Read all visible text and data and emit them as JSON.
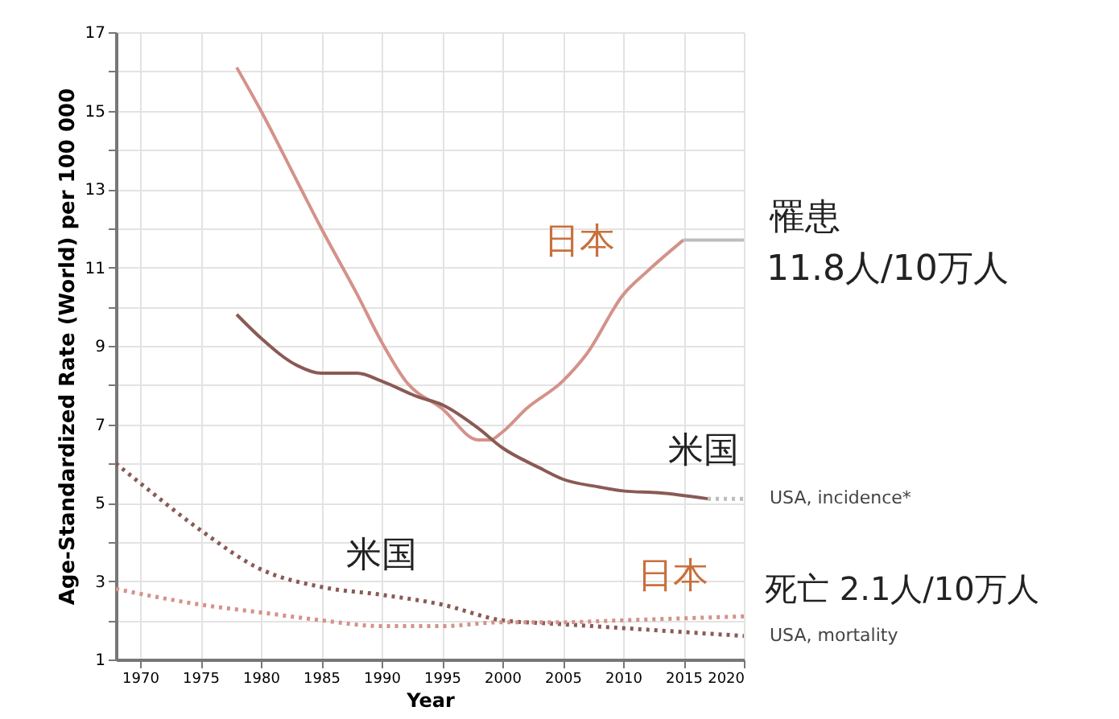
{
  "chart_data": {
    "type": "line",
    "xlabel": "Year",
    "ylabel": "Age-Standardized Rate (World) per 100 000",
    "xlim": [
      1968,
      2020
    ],
    "xticks": [
      1970,
      1975,
      1980,
      1985,
      1990,
      1995,
      2000,
      2005,
      2010,
      2015,
      2020
    ],
    "ylim": [
      1,
      17
    ],
    "yticks": [
      1,
      {
        "value": 2,
        "label": null
      },
      3,
      {
        "value": 4,
        "label": null
      },
      5,
      {
        "value": 6,
        "label": null
      },
      7,
      {
        "value": 8,
        "label": null
      },
      9,
      {
        "value": 10,
        "label": null
      },
      11,
      {
        "value": 12,
        "label": null
      },
      13,
      {
        "value": 14,
        "label": null
      },
      15,
      {
        "value": 16,
        "label": null
      },
      17
    ],
    "grid": true,
    "legend": false,
    "marker": "none",
    "series": [
      {
        "color": "#d4928a",
        "line_style": "solid",
        "x": [
          1978,
          1980,
          1983,
          1985,
          1988,
          1990,
          1992,
          1995,
          1998,
          1999,
          2000,
          2002,
          2005,
          2007,
          2010,
          2012,
          2015
        ],
        "values": [
          16.1,
          15.0,
          13.2,
          12.0,
          10.3,
          9.1,
          8.1,
          7.4,
          6.6,
          6.6,
          6.8,
          7.4,
          8.1,
          8.8,
          10.3,
          10.9,
          11.7
        ]
      },
      {
        "color": "#bdbdbd",
        "line_style": "solid",
        "x": [
          2015,
          2020
        ],
        "values": [
          11.7,
          11.7
        ]
      },
      {
        "color": "#8a5a55",
        "line_style": "solid",
        "x": [
          1978,
          1980,
          1983,
          1985,
          1988,
          1990,
          1993,
          1995,
          1998,
          2000,
          2003,
          2005,
          2008,
          2010,
          2013,
          2017
        ],
        "values": [
          9.8,
          9.2,
          8.5,
          8.3,
          8.3,
          8.1,
          7.7,
          7.5,
          6.9,
          6.4,
          5.9,
          5.6,
          5.4,
          5.3,
          5.25,
          5.1
        ]
      },
      {
        "color": "#bdbdbd",
        "line_style": "dotted",
        "x": [
          2017,
          2020
        ],
        "values": [
          5.1,
          5.1
        ]
      },
      {
        "color": "#8a5a55",
        "line_style": "dotted",
        "x": [
          1968,
          1970,
          1975,
          1980,
          1985,
          1990,
          1995,
          2000,
          2005,
          2010,
          2015,
          2020
        ],
        "values": [
          6.0,
          5.5,
          4.3,
          3.3,
          2.85,
          2.65,
          2.4,
          2.0,
          1.9,
          1.8,
          1.7,
          1.6
        ]
      },
      {
        "color": "#d4928a",
        "line_style": "dotted",
        "x": [
          1968,
          1975,
          1980,
          1985,
          1990,
          1995,
          2000,
          2005,
          2010,
          2015,
          2020
        ],
        "values": [
          2.8,
          2.4,
          2.2,
          2.0,
          1.85,
          1.85,
          1.95,
          1.95,
          2.0,
          2.05,
          2.1
        ]
      }
    ],
    "annotations": [
      "日本",
      "米国",
      "米国",
      "日本",
      "罹患",
      "11.8人/10万人",
      "死亡 2.1人/10万人",
      {
        "text": "USA, incidence*",
        "x": 2020,
        "y": 5.1
      },
      {
        "text": "USA, mortality",
        "x": 2020,
        "y": 1.6
      }
    ]
  }
}
